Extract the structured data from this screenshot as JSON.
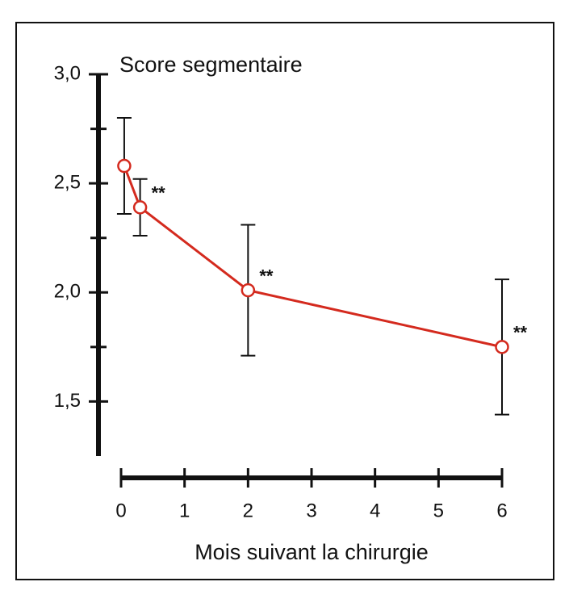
{
  "chart_data": {
    "type": "line",
    "y_label": "Score segmentaire",
    "x_label": "Mois suivant la chirurgie",
    "x": [
      0.05,
      0.3,
      2,
      6
    ],
    "series": [
      {
        "color": "#d42a1e",
        "values": [
          2.58,
          2.39,
          2.01,
          1.75
        ],
        "errors": [
          0.22,
          0.13,
          0.3,
          0.31
        ],
        "significance": [
          null,
          "**",
          "**",
          "**"
        ]
      }
    ],
    "xlim": [
      0,
      6
    ],
    "xticks": [
      0,
      1,
      2,
      3,
      4,
      5,
      6
    ],
    "ylim": [
      1.25,
      3.0
    ],
    "yticks": [
      {
        "value": 1.5,
        "label": "1,5"
      },
      {
        "value": 2.0,
        "label": "2,0"
      },
      {
        "value": 2.5,
        "label": "2,5"
      },
      {
        "value": 3.0,
        "label": "3,0"
      }
    ],
    "yminor": [
      1.75,
      2.25,
      2.75
    ]
  }
}
